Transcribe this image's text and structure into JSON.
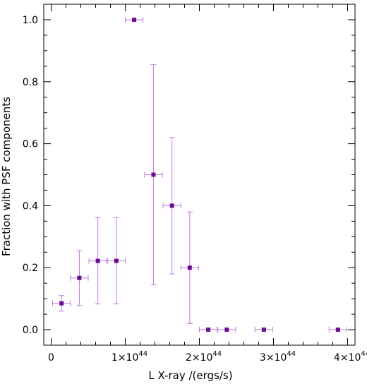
{
  "chart_data": {
    "type": "scatter",
    "title": "",
    "xlabel": "L X-ray /(ergs/s)",
    "ylabel": "Fraction with PSF components",
    "xlim": [
      -1e+43,
      4.1e+44
    ],
    "ylim": [
      -0.05,
      1.05
    ],
    "grid": false,
    "legend": "none",
    "x_ticks": [
      {
        "value": 0,
        "label": "0"
      },
      {
        "value": 1e+44,
        "label": "1×10",
        "exp": "44"
      },
      {
        "value": 2e+44,
        "label": "2×10",
        "exp": "44"
      },
      {
        "value": 3e+44,
        "label": "3×10",
        "exp": "44"
      },
      {
        "value": 4e+44,
        "label": "4×10",
        "exp": "44"
      }
    ],
    "y_ticks": [
      {
        "value": 0.0,
        "label": "0.0"
      },
      {
        "value": 0.2,
        "label": "0.2"
      },
      {
        "value": 0.4,
        "label": "0.4"
      },
      {
        "value": 0.6,
        "label": "0.6"
      },
      {
        "value": 0.8,
        "label": "0.8"
      },
      {
        "value": 1.0,
        "label": "1.0"
      }
    ],
    "marker_color": "#6a0d91",
    "errorbar_color": "#c07ae0",
    "points": [
      {
        "x": 1.4e+43,
        "xerr": 1.2e+43,
        "y": 0.085,
        "ylo": 0.06,
        "yhi": 0.11
      },
      {
        "x": 3.8e+43,
        "xerr": 1.2e+43,
        "y": 0.167,
        "ylo": 0.078,
        "yhi": 0.255
      },
      {
        "x": 6.3e+43,
        "xerr": 1.2e+43,
        "y": 0.222,
        "ylo": 0.083,
        "yhi": 0.362
      },
      {
        "x": 8.8e+43,
        "xerr": 1.2e+43,
        "y": 0.222,
        "ylo": 0.083,
        "yhi": 0.362
      },
      {
        "x": 1.12e+44,
        "xerr": 1.2e+43,
        "y": 1.0,
        "ylo": 1.0,
        "yhi": 1.0
      },
      {
        "x": 1.38e+44,
        "xerr": 1.2e+43,
        "y": 0.5,
        "ylo": 0.145,
        "yhi": 0.855
      },
      {
        "x": 1.63e+44,
        "xerr": 1.2e+43,
        "y": 0.4,
        "ylo": 0.18,
        "yhi": 0.62
      },
      {
        "x": 1.87e+44,
        "xerr": 1.2e+43,
        "y": 0.2,
        "ylo": 0.02,
        "yhi": 0.38
      },
      {
        "x": 2.12e+44,
        "xerr": 1.2e+43,
        "y": 0.0,
        "ylo": 0.0,
        "yhi": 0.0
      },
      {
        "x": 2.37e+44,
        "xerr": 1.2e+43,
        "y": 0.0,
        "ylo": 0.0,
        "yhi": 0.0
      },
      {
        "x": 2.87e+44,
        "xerr": 1.2e+43,
        "y": 0.0,
        "ylo": 0.0,
        "yhi": 0.0
      },
      {
        "x": 3.87e+44,
        "xerr": 1.2e+43,
        "y": 0.0,
        "ylo": 0.0,
        "yhi": 0.0
      }
    ]
  }
}
